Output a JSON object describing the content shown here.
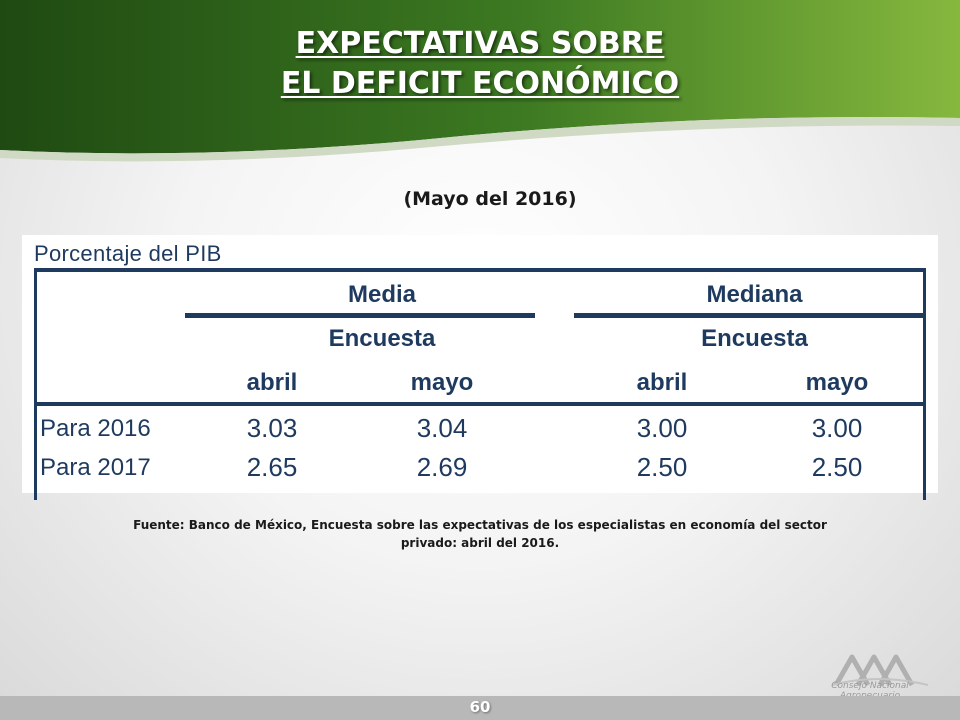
{
  "slide": {
    "title_line1": "EXPECTATIVAS SOBRE",
    "title_line2": "EL DEFICIT ECONÓMICO",
    "subtitle": "(Mayo del 2016)",
    "source": "Fuente: Banco de México, Encuesta sobre las expectativas de los especialistas en economía del sector privado: abril del 2016.",
    "page_number": "60",
    "logo_text": "Consejo Nacional Agropecuario",
    "logo_icon": "cna-logo-icon"
  },
  "colors": {
    "header_green_dark": "#2e5e1c",
    "header_green_light": "#7fb23c",
    "table_navy": "#1f3a5f"
  },
  "table": {
    "title": "Porcentaje del PIB",
    "groups": [
      {
        "label": "Media",
        "subheader": "Encuesta",
        "columns": [
          "abril",
          "mayo"
        ]
      },
      {
        "label": "Mediana",
        "subheader": "Encuesta",
        "columns": [
          "abril",
          "mayo"
        ]
      }
    ],
    "rows": [
      {
        "label": "Para 2016",
        "values": [
          "3.03",
          "3.04",
          "3.00",
          "3.00"
        ]
      },
      {
        "label": "Para 2017",
        "values": [
          "2.65",
          "2.69",
          "2.50",
          "2.50"
        ]
      }
    ]
  }
}
